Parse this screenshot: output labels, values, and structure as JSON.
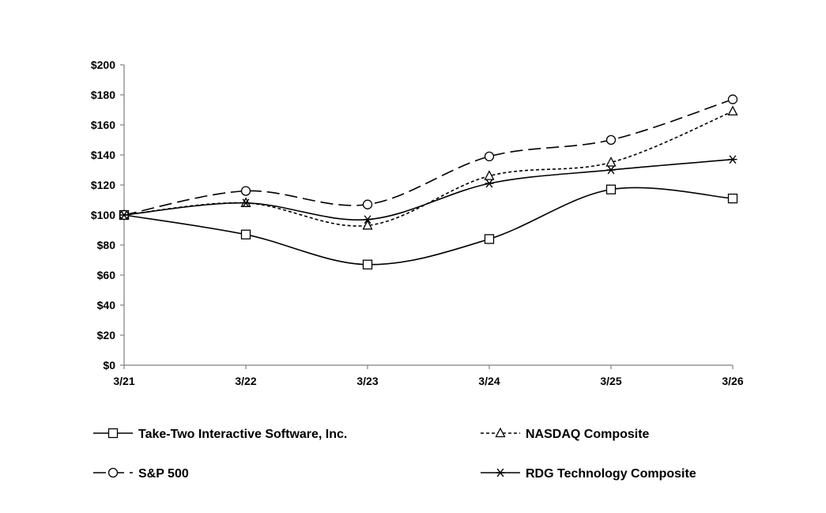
{
  "chart_data": {
    "type": "line",
    "title": "",
    "xlabel": "",
    "ylabel": "",
    "categories": [
      "3/21",
      "3/22",
      "3/23",
      "3/24",
      "3/25",
      "3/26"
    ],
    "ylim": [
      0,
      200
    ],
    "yticks": [
      0,
      20,
      40,
      60,
      80,
      100,
      120,
      140,
      160,
      180,
      200
    ],
    "ytick_labels": [
      "$0",
      "$20",
      "$40",
      "$60",
      "$80",
      "$100",
      "$120",
      "$140",
      "$160",
      "$180",
      "$200"
    ],
    "grid": false,
    "legend_position": "bottom",
    "series": [
      {
        "name": "Take-Two Interactive Software, Inc.",
        "values": [
          100,
          87,
          67,
          84,
          117,
          111
        ],
        "marker": "square",
        "dash": "solid",
        "color": "#000000"
      },
      {
        "name": "NASDAQ Composite",
        "values": [
          100,
          108,
          93,
          126,
          135,
          169
        ],
        "marker": "triangle",
        "dash": "dotted",
        "color": "#000000"
      },
      {
        "name": "S&P 500",
        "values": [
          100,
          116,
          107,
          139,
          150,
          177
        ],
        "marker": "circle",
        "dash": "long-dash",
        "color": "#000000"
      },
      {
        "name": "RDG Technology Composite",
        "values": [
          100,
          108,
          97,
          121,
          130,
          137
        ],
        "marker": "star",
        "dash": "solid",
        "color": "#000000"
      }
    ]
  }
}
